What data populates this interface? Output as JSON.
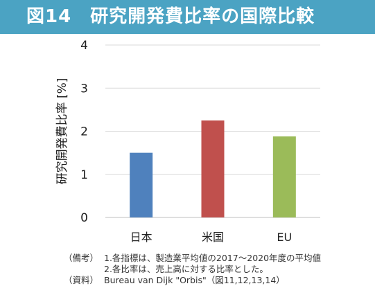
{
  "title": "図14　研究開発費比率の国際比較",
  "chart_data": {
    "type": "bar",
    "categories": [
      "日本",
      "米国",
      "EU"
    ],
    "values": [
      1.5,
      2.25,
      1.88
    ],
    "colors": [
      "#4f81bd",
      "#c0504d",
      "#9bbb59"
    ],
    "ylabel": "研究開発費比率 [%]",
    "xlabel": "",
    "ylim": [
      0,
      4
    ],
    "yticks": [
      0,
      1,
      2,
      3,
      4
    ],
    "grid": true,
    "legend": "none"
  },
  "notes": [
    {
      "label": "（備考）",
      "text": "1.各指標は、製造業平均値の2017～2020年度の平均値"
    },
    {
      "label": "",
      "text": "2.各比率は、売上高に対する比率とした。"
    },
    {
      "label": "（資料）",
      "text": "Bureau van Dijk \"Orbis\"（図11,12,13,14）"
    }
  ]
}
